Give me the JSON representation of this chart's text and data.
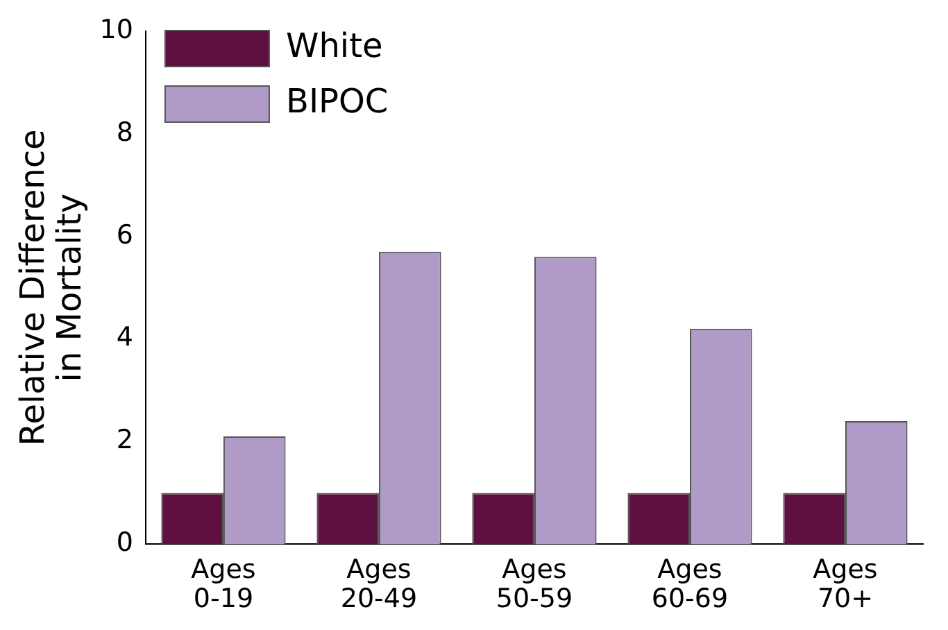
{
  "chart_data": {
    "type": "bar",
    "ylabel": "Relative Difference\nin Mortality",
    "categories": [
      "Ages 0-19",
      "Ages 20-49",
      "Ages 50-59",
      "Ages 60-69",
      "Ages 70+"
    ],
    "series": [
      {
        "name": "White",
        "color": "#5e1040",
        "values": [
          1,
          1,
          1,
          1,
          1
        ]
      },
      {
        "name": "BIPOC",
        "color": "#b09ac8",
        "values": [
          2.1,
          5.7,
          5.6,
          4.2,
          2.4
        ]
      }
    ],
    "ylim": [
      0,
      10
    ],
    "yticks": [
      0,
      2,
      4,
      6,
      8,
      10
    ],
    "grid": false,
    "legend": "top left"
  }
}
